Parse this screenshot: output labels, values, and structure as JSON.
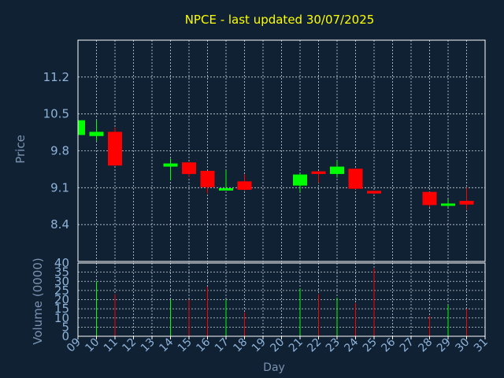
{
  "colors": {
    "background": "#0f2133",
    "title": "#ffff00",
    "axis_text": "#8fb3d9",
    "label_text": "#7a93b0",
    "frame": "#ffffff",
    "grid": "#c8d2dc",
    "up": "#00ff00",
    "down": "#ff0000"
  },
  "chart_data": {
    "type": "candlestick",
    "title": "NPCE - last updated 30/07/2025",
    "xlabel": "Day",
    "ylabel_price": "Price",
    "ylabel_volume": "Volume (0000)",
    "x_ticks": [
      "09",
      "10",
      "11",
      "12",
      "13",
      "14",
      "15",
      "16",
      "17",
      "18",
      "19",
      "20",
      "21",
      "22",
      "23",
      "24",
      "25",
      "26",
      "27",
      "28",
      "29",
      "30",
      "31"
    ],
    "price_ticks": [
      "8.4",
      "9.1",
      "9.8",
      "10.5",
      "11.2"
    ],
    "volume_ticks": [
      "0",
      "5",
      "10",
      "15",
      "20",
      "25",
      "30",
      "35",
      "40"
    ],
    "price_ylim": [
      7.7,
      11.9
    ],
    "volume_ylim": [
      0,
      40
    ],
    "grid": true,
    "candles": [
      {
        "day": "09",
        "open": 10.1,
        "high": 10.38,
        "low": 10.1,
        "close": 10.38,
        "volume": 0
      },
      {
        "day": "10",
        "open": 10.08,
        "high": 10.38,
        "low": 9.99,
        "close": 10.16,
        "volume": 30
      },
      {
        "day": "11",
        "open": 10.16,
        "high": 10.24,
        "low": 9.52,
        "close": 9.52,
        "volume": 23
      },
      {
        "day": "14",
        "open": 9.5,
        "high": 9.65,
        "low": 9.24,
        "close": 9.56,
        "volume": 20
      },
      {
        "day": "15",
        "open": 9.58,
        "high": 9.58,
        "low": 9.3,
        "close": 9.36,
        "volume": 20
      },
      {
        "day": "16",
        "open": 9.42,
        "high": 9.42,
        "low": 8.99,
        "close": 9.11,
        "volume": 27
      },
      {
        "day": "17",
        "open": 9.07,
        "high": 9.43,
        "low": 9.05,
        "close": 9.09,
        "volume": 20
      },
      {
        "day": "18",
        "open": 9.22,
        "high": 9.35,
        "low": 9.04,
        "close": 9.06,
        "volume": 13
      },
      {
        "day": "21",
        "open": 9.14,
        "high": 9.37,
        "low": 9.02,
        "close": 9.35,
        "volume": 26
      },
      {
        "day": "22",
        "open": 9.41,
        "high": 9.41,
        "low": 9.19,
        "close": 9.36,
        "volume": 23
      },
      {
        "day": "23",
        "open": 9.36,
        "high": 9.61,
        "low": 9.29,
        "close": 9.5,
        "volume": 21
      },
      {
        "day": "24",
        "open": 9.46,
        "high": 9.46,
        "low": 9.07,
        "close": 9.08,
        "volume": 18
      },
      {
        "day": "25",
        "open": 9.04,
        "high": 9.04,
        "low": 8.98,
        "close": 8.99,
        "volume": 37
      },
      {
        "day": "28",
        "open": 9.02,
        "high": 9.02,
        "low": 8.73,
        "close": 8.77,
        "volume": 11
      },
      {
        "day": "29",
        "open": 8.76,
        "high": 8.88,
        "low": 8.73,
        "close": 8.8,
        "volume": 17
      },
      {
        "day": "30",
        "open": 8.85,
        "high": 9.1,
        "low": 8.68,
        "close": 8.78,
        "volume": 15
      }
    ]
  }
}
